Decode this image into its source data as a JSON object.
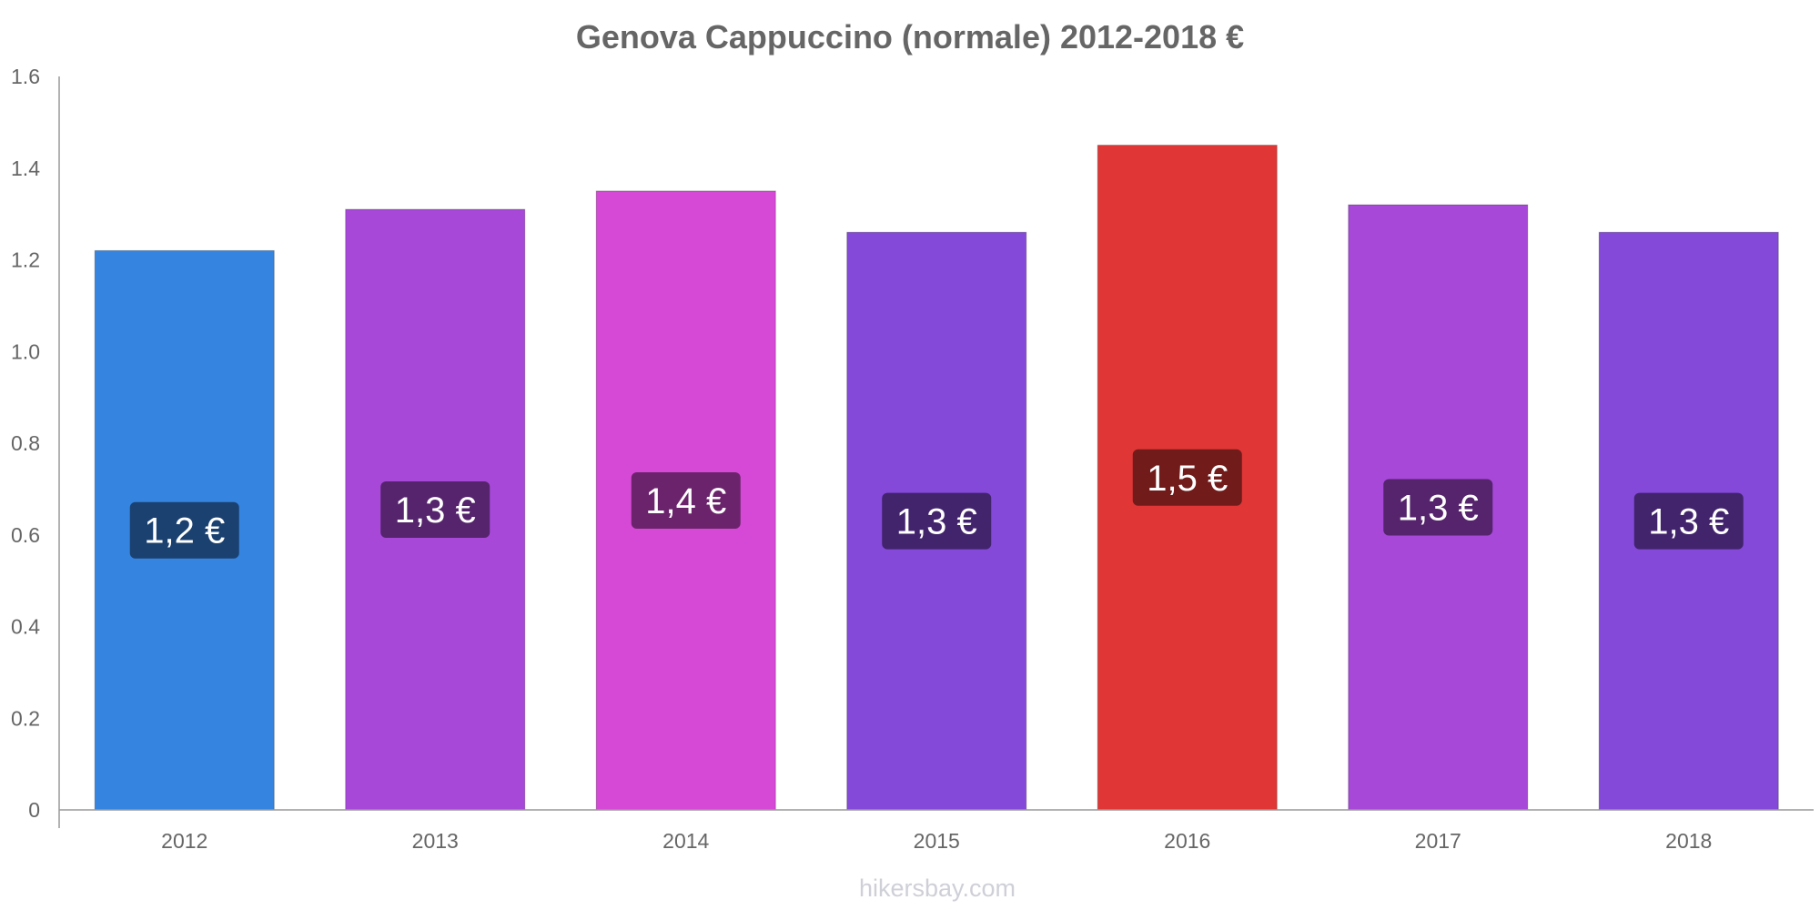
{
  "chart_data": {
    "type": "bar",
    "title": "Genova Cappuccino (normale) 2012-2018 €",
    "xlabel": "",
    "ylabel": "",
    "categories": [
      "2012",
      "2013",
      "2014",
      "2015",
      "2016",
      "2017",
      "2018"
    ],
    "values": [
      1.22,
      1.31,
      1.35,
      1.26,
      1.45,
      1.32,
      1.26
    ],
    "value_labels": [
      "1,2 €",
      "1,3 €",
      "1,4 €",
      "1,3 €",
      "1,5 €",
      "1,3 €",
      "1,3 €"
    ],
    "ylim": [
      0,
      1.6
    ],
    "yticks": [
      "0",
      "0.2",
      "0.4",
      "0.6",
      "0.8",
      "1.0",
      "1.2",
      "1.4",
      "1.6"
    ],
    "grid": false,
    "legend": "none",
    "bar_colors": [
      "#3584e0",
      "#a748d9",
      "#d649d6",
      "#8449d9",
      "#e03636",
      "#a748d9",
      "#8449d9"
    ],
    "label_box_colors": [
      "#1b4170",
      "#55246c",
      "#6b246b",
      "#42246c",
      "#711b1b",
      "#55246c",
      "#42246c"
    ]
  },
  "watermark": "hikersbay.com"
}
